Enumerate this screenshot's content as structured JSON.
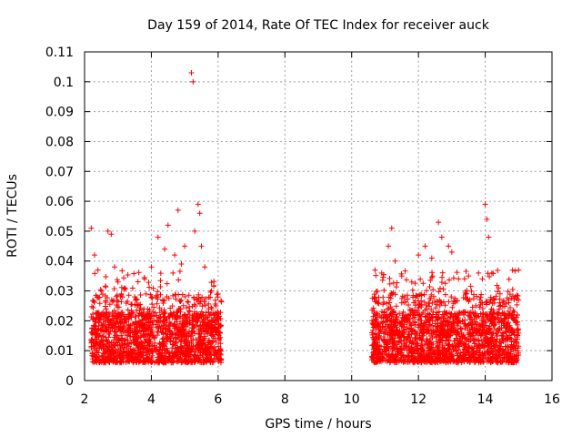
{
  "chart_data": {
    "type": "scatter",
    "title": "Day 159 of 2014, Rate Of TEC Index for receiver auck",
    "xlabel": "GPS time / hours",
    "ylabel": "ROTI / TECUs",
    "xlim": [
      2,
      16
    ],
    "ylim": [
      0,
      0.11
    ],
    "xticks": [
      2,
      4,
      6,
      8,
      10,
      12,
      14,
      16
    ],
    "xtick_labels": [
      "2",
      "4",
      "6",
      "8",
      "10",
      "12",
      "14",
      "16"
    ],
    "yticks": [
      0,
      0.01,
      0.02,
      0.03,
      0.04,
      0.05,
      0.06,
      0.07,
      0.08,
      0.09,
      0.1,
      0.11
    ],
    "ytick_labels": [
      "0",
      "0.01",
      "0.02",
      "0.03",
      "0.04",
      "0.05",
      "0.06",
      "0.07",
      "0.08",
      "0.09",
      "0.1",
      "0.11"
    ],
    "grid": true,
    "marker": "+",
    "color": "#ff0000",
    "series": [
      {
        "name": "ROTI",
        "segments": [
          {
            "x_start": 2.2,
            "x_end": 6.1
          },
          {
            "x_start": 10.6,
            "x_end": 15.0
          }
        ],
        "points": [
          [
            2.2,
            0.051
          ],
          [
            2.3,
            0.042
          ],
          [
            2.4,
            0.037
          ],
          [
            2.5,
            0.03
          ],
          [
            2.7,
            0.05
          ],
          [
            2.8,
            0.049
          ],
          [
            2.9,
            0.038
          ],
          [
            3.0,
            0.033
          ],
          [
            3.2,
            0.031
          ],
          [
            3.5,
            0.028
          ],
          [
            3.8,
            0.034
          ],
          [
            4.0,
            0.038
          ],
          [
            4.2,
            0.048
          ],
          [
            4.4,
            0.044
          ],
          [
            4.5,
            0.052
          ],
          [
            4.7,
            0.042
          ],
          [
            4.8,
            0.057
          ],
          [
            4.9,
            0.039
          ],
          [
            5.0,
            0.045
          ],
          [
            5.2,
            0.103
          ],
          [
            5.25,
            0.1
          ],
          [
            5.3,
            0.05
          ],
          [
            5.4,
            0.059
          ],
          [
            5.45,
            0.056
          ],
          [
            5.5,
            0.045
          ],
          [
            5.6,
            0.038
          ],
          [
            5.8,
            0.03
          ],
          [
            6.0,
            0.029
          ],
          [
            10.7,
            0.037
          ],
          [
            10.9,
            0.036
          ],
          [
            11.1,
            0.045
          ],
          [
            11.2,
            0.051
          ],
          [
            11.3,
            0.04
          ],
          [
            11.5,
            0.035
          ],
          [
            11.8,
            0.033
          ],
          [
            12.0,
            0.042
          ],
          [
            12.2,
            0.045
          ],
          [
            12.4,
            0.041
          ],
          [
            12.6,
            0.053
          ],
          [
            12.7,
            0.048
          ],
          [
            12.9,
            0.045
          ],
          [
            13.0,
            0.043
          ],
          [
            13.2,
            0.034
          ],
          [
            13.5,
            0.035
          ],
          [
            13.8,
            0.036
          ],
          [
            14.0,
            0.059
          ],
          [
            14.05,
            0.054
          ],
          [
            14.1,
            0.048
          ],
          [
            14.2,
            0.036
          ],
          [
            14.4,
            0.031
          ],
          [
            14.7,
            0.027
          ],
          [
            14.9,
            0.028
          ],
          [
            15.0,
            0.037
          ]
        ]
      }
    ]
  }
}
